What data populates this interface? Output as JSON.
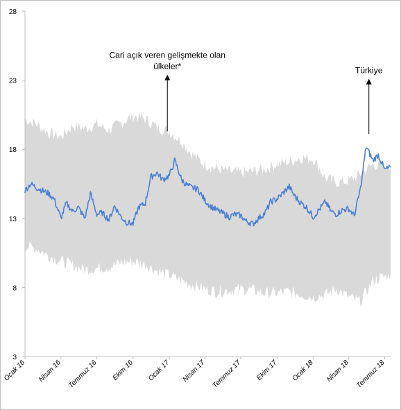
{
  "chart_data": {
    "type": "area",
    "ylim": [
      3,
      28
    ],
    "yticks": [
      3,
      8,
      13,
      18,
      23,
      28
    ],
    "xlim": [
      "2016-01-01",
      "2018-07-16"
    ],
    "x_tick_labels": [
      {
        "label": "Ocak 16",
        "date": "2016-01-01"
      },
      {
        "label": "Nisan 16",
        "date": "2016-04-01"
      },
      {
        "label": "Temmuz 16",
        "date": "2016-07-01"
      },
      {
        "label": "Ekim 16",
        "date": "2016-10-01"
      },
      {
        "label": "Ocak 17",
        "date": "2017-01-01"
      },
      {
        "label": "Nisan 17",
        "date": "2017-04-01"
      },
      {
        "label": "Temmuz 17",
        "date": "2017-07-01"
      },
      {
        "label": "Ekim 17",
        "date": "2017-10-01"
      },
      {
        "label": "Ocak 18",
        "date": "2018-01-01"
      },
      {
        "label": "Nisan 18",
        "date": "2018-04-01"
      },
      {
        "label": "Temmuz 18",
        "date": "2018-07-01"
      }
    ],
    "band": {
      "color": "#d9d9d9",
      "dates": [
        "2016-01-01",
        "2016-02-01",
        "2016-03-01",
        "2016-04-01",
        "2016-05-01",
        "2016-06-01",
        "2016-07-01",
        "2016-08-01",
        "2016-09-01",
        "2016-10-01",
        "2016-11-01",
        "2016-12-01",
        "2017-01-01",
        "2017-02-01",
        "2017-03-01",
        "2017-04-01",
        "2017-05-01",
        "2017-06-01",
        "2017-07-01",
        "2017-08-01",
        "2017-09-01",
        "2017-10-01",
        "2017-11-01",
        "2017-12-01",
        "2018-01-01",
        "2018-02-01",
        "2018-03-01",
        "2018-04-01",
        "2018-05-01",
        "2018-06-01",
        "2018-07-01",
        "2018-07-16"
      ],
      "upper": [
        20.2,
        19.8,
        19.2,
        18.9,
        19.7,
        19.5,
        19.8,
        19.4,
        19.9,
        20.4,
        20.2,
        19.6,
        19.3,
        18.6,
        17.6,
        16.9,
        16.6,
        16.4,
        16.3,
        16.4,
        16.6,
        16.9,
        17.1,
        17.4,
        17.3,
        15.9,
        15.6,
        15.7,
        16.2,
        16.9,
        16.8,
        16.7
      ],
      "lower": [
        11.0,
        10.8,
        10.3,
        9.9,
        9.6,
        9.3,
        9.4,
        9.5,
        9.8,
        9.9,
        9.7,
        9.2,
        8.9,
        8.5,
        8.2,
        7.9,
        7.7,
        7.8,
        7.9,
        7.8,
        7.6,
        7.6,
        7.7,
        7.5,
        7.3,
        7.5,
        7.9,
        7.3,
        7.0,
        8.5,
        8.8,
        8.9
      ]
    },
    "series": [
      {
        "name": "Türkiye",
        "color": "#4a7fd4",
        "dates": [
          "2016-01-01",
          "2016-01-15",
          "2016-02-01",
          "2016-02-15",
          "2016-03-01",
          "2016-03-15",
          "2016-04-01",
          "2016-04-15",
          "2016-05-01",
          "2016-05-15",
          "2016-06-01",
          "2016-06-15",
          "2016-07-01",
          "2016-07-15",
          "2016-08-01",
          "2016-08-15",
          "2016-09-01",
          "2016-09-15",
          "2016-10-01",
          "2016-10-15",
          "2016-11-01",
          "2016-11-15",
          "2016-12-01",
          "2016-12-15",
          "2017-01-01",
          "2017-01-15",
          "2017-02-01",
          "2017-02-15",
          "2017-03-01",
          "2017-03-15",
          "2017-04-01",
          "2017-04-15",
          "2017-05-01",
          "2017-05-15",
          "2017-06-01",
          "2017-06-15",
          "2017-07-01",
          "2017-07-15",
          "2017-08-01",
          "2017-08-15",
          "2017-09-01",
          "2017-09-15",
          "2017-10-01",
          "2017-10-15",
          "2017-11-01",
          "2017-11-15",
          "2017-12-01",
          "2017-12-15",
          "2018-01-01",
          "2018-01-15",
          "2018-02-01",
          "2018-02-15",
          "2018-03-01",
          "2018-03-15",
          "2018-04-01",
          "2018-04-15",
          "2018-05-01",
          "2018-05-15",
          "2018-06-01",
          "2018-06-15",
          "2018-07-01",
          "2018-07-16"
        ],
        "values": [
          15.0,
          15.5,
          15.2,
          15.0,
          14.8,
          14.4,
          13.0,
          14.1,
          13.5,
          13.8,
          13.0,
          14.8,
          13.3,
          13.4,
          12.9,
          13.9,
          13.1,
          12.7,
          12.6,
          13.8,
          14.1,
          16.0,
          16.3,
          15.8,
          16.1,
          17.2,
          15.8,
          15.4,
          15.2,
          15.1,
          14.3,
          13.9,
          13.6,
          13.4,
          13.1,
          13.3,
          13.2,
          12.8,
          12.6,
          13.0,
          13.4,
          14.2,
          14.4,
          14.8,
          15.3,
          14.6,
          14.1,
          13.8,
          13.1,
          13.6,
          14.2,
          13.5,
          13.3,
          13.6,
          13.7,
          13.2,
          15.2,
          18.2,
          17.2,
          17.6,
          16.5,
          16.7
        ]
      }
    ],
    "annotations": [
      {
        "text_lines": [
          "Cari açık veren gelişmekte olan",
          "ülkeler*"
        ],
        "arrow_from_date": "2016-12-27",
        "arrow_from_value": 19.3,
        "arrow_to_value": 23.3
      },
      {
        "text_lines": [
          "Türkiye"
        ],
        "arrow_from_date": "2018-05-22",
        "arrow_from_value": 19.1,
        "arrow_to_value": 23.0
      }
    ]
  }
}
